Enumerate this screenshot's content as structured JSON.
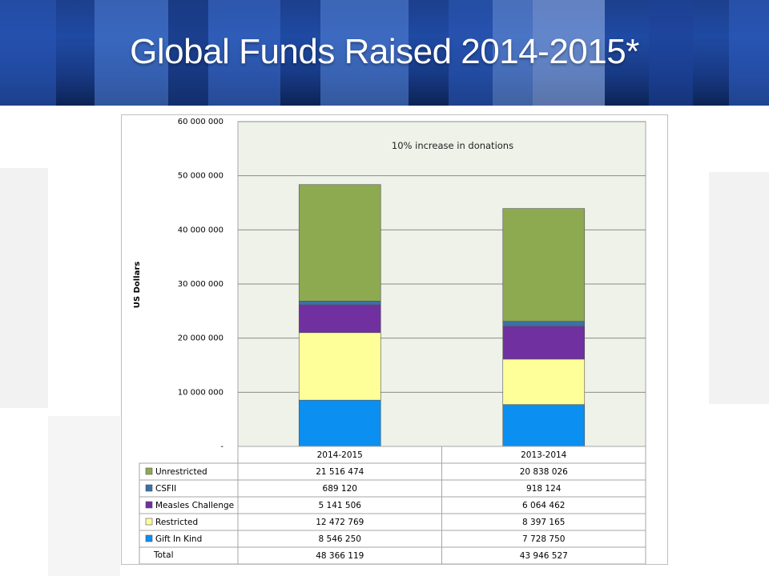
{
  "slide": {
    "title": "Global Funds Raised 2014-2015*"
  },
  "chart_data": {
    "type": "bar",
    "stacked": true,
    "annotation": "10% increase in donations",
    "ylabel": "US Dollars",
    "ylim": [
      0,
      60000000
    ],
    "yticks": [
      {
        "value": 0,
        "label": "-"
      },
      {
        "value": 10000000,
        "label": "10 000 000"
      },
      {
        "value": 20000000,
        "label": "20 000 000"
      },
      {
        "value": 30000000,
        "label": "30 000 000"
      },
      {
        "value": 40000000,
        "label": "40 000 000"
      },
      {
        "value": 50000000,
        "label": "50 000 000"
      },
      {
        "value": 60000000,
        "label": "60 000 000"
      }
    ],
    "grid": true,
    "plot_background": "#eef2e9",
    "categories": [
      "2014-2015",
      "2013-2014"
    ],
    "series": [
      {
        "name": "Gift In Kind",
        "color": "#0b8ff0",
        "values": [
          8546250,
          7728750
        ],
        "labels": [
          "8 546 250",
          "7 728 750"
        ]
      },
      {
        "name": "Restricted",
        "color": "#ffff99",
        "values": [
          12472769,
          8397165
        ],
        "labels": [
          "12 472 769",
          "8 397 165"
        ]
      },
      {
        "name": "Measles Challenge",
        "color": "#7030a0",
        "values": [
          5141506,
          6064462
        ],
        "labels": [
          "5 141 506",
          "6 064 462"
        ]
      },
      {
        "name": "CSFII",
        "color": "#3b6fa8",
        "values": [
          689120,
          918124
        ],
        "labels": [
          "689 120",
          "918 124"
        ]
      },
      {
        "name": "Unrestricted",
        "color": "#8daa50",
        "values": [
          21516474,
          20838026
        ],
        "labels": [
          "21 516 474",
          "20 838 026"
        ]
      }
    ],
    "table_order": [
      "Unrestricted",
      "CSFII",
      "Measles Challenge",
      "Restricted",
      "Gift In Kind"
    ],
    "totals": {
      "name": "Total",
      "labels": [
        "48 366 119",
        "43 946 527"
      ]
    }
  }
}
